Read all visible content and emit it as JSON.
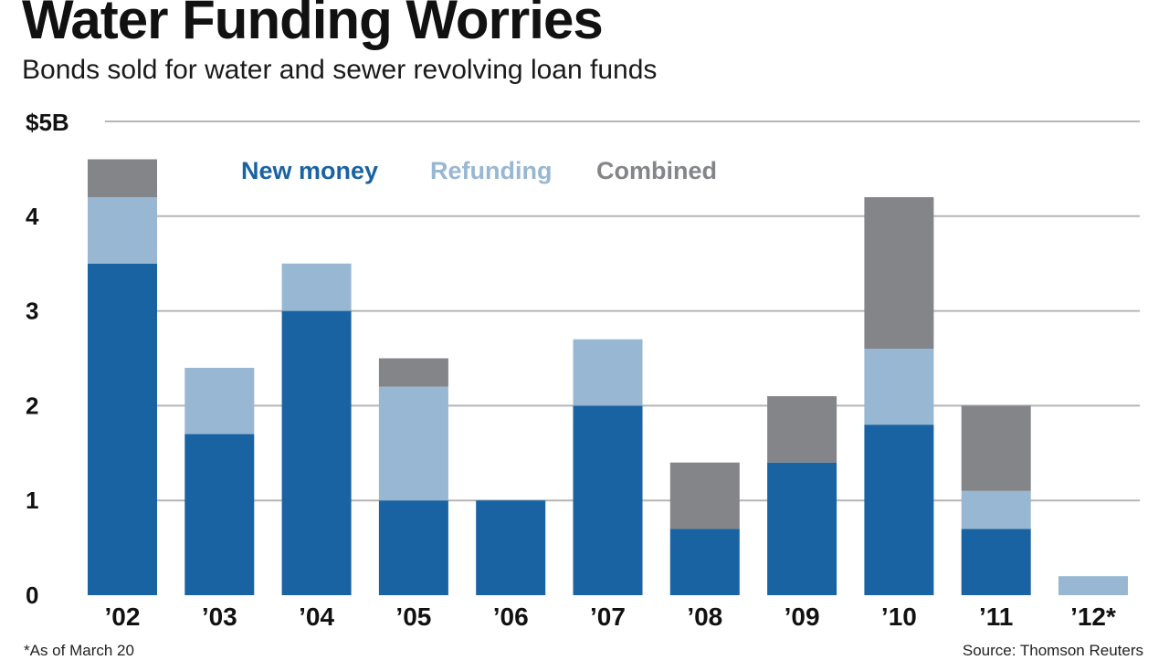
{
  "header": {
    "title": "Water Funding Worries",
    "subtitle": "Bonds sold for water and sewer revolving loan funds"
  },
  "footer": {
    "footnote": "*As of March 20",
    "source": "Source: Thomson Reuters"
  },
  "colors": {
    "new_money": "#1a63a3",
    "refunding": "#98b7d2",
    "combined": "#838589",
    "grid": "#b5b5b5"
  },
  "chart_data": {
    "type": "bar",
    "stacked": true,
    "categories": [
      "’02",
      "’03",
      "’04",
      "’05",
      "’06",
      "’07",
      "’08",
      "’09",
      "’10",
      "’11",
      "’12*"
    ],
    "series": [
      {
        "name": "New money",
        "values": [
          3.5,
          1.7,
          3.0,
          1.0,
          1.0,
          2.0,
          0.7,
          1.4,
          1.8,
          0.7,
          0.0
        ]
      },
      {
        "name": "Refunding",
        "values": [
          0.7,
          0.7,
          0.5,
          1.2,
          0.0,
          0.7,
          0.0,
          0.0,
          0.8,
          0.4,
          0.2
        ]
      },
      {
        "name": "Combined",
        "values": [
          0.4,
          0.0,
          0.0,
          0.3,
          0.0,
          0.0,
          0.7,
          0.7,
          1.6,
          0.9,
          0.0
        ]
      }
    ],
    "ylim": [
      0,
      5
    ],
    "yticks": [
      0,
      1,
      2,
      3,
      4,
      5
    ],
    "ytick_labels": [
      "0",
      "1",
      "2",
      "3",
      "4",
      "$5B"
    ],
    "grid": true,
    "legend_position": "top-center"
  }
}
